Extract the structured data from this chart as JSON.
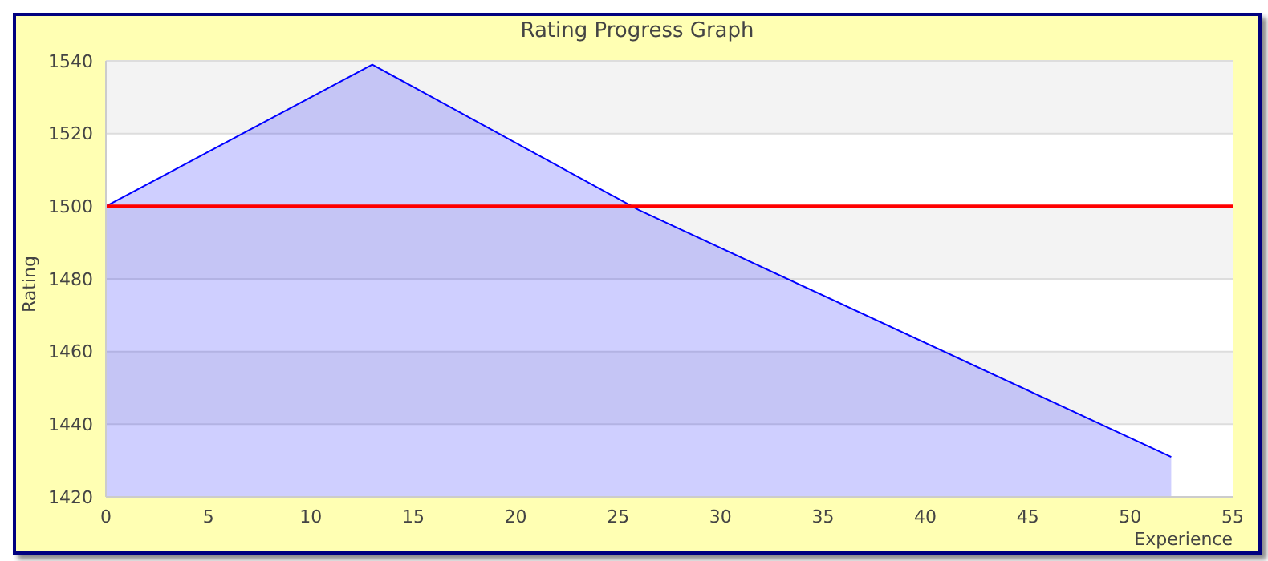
{
  "chart_data": {
    "type": "area",
    "title": "Rating Progress Graph",
    "xlabel": "Experience",
    "ylabel": "Rating",
    "x": [
      0,
      13,
      26,
      52
    ],
    "series": [
      {
        "color": "#0000ff",
        "values": [
          1500,
          1539,
          1499,
          1431
        ]
      }
    ],
    "xlim": [
      0,
      55
    ],
    "xticks": [
      0,
      5,
      10,
      15,
      20,
      25,
      30,
      35,
      40,
      45,
      50,
      55
    ],
    "ylim": [
      1420,
      1540
    ],
    "yticks": [
      1420,
      1440,
      1460,
      1480,
      1500,
      1520,
      1540
    ],
    "grid": "y",
    "legend": false,
    "marker": "none",
    "line_style": "solid",
    "ref_lines": [
      {
        "axis": "y",
        "value": 1500,
        "color": "#ff0000"
      }
    ]
  }
}
